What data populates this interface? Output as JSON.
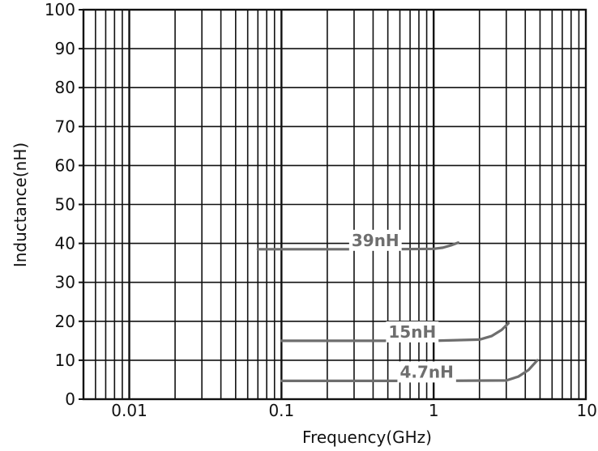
{
  "chart_data": {
    "type": "line",
    "xscale": "log",
    "xlim": [
      0.005,
      10
    ],
    "ylim": [
      0,
      100
    ],
    "grid": true,
    "xlabel": "Frequency(GHz)",
    "ylabel": "Inductance(nH)",
    "xticks": [
      {
        "value": 0.01,
        "label": "0.01"
      },
      {
        "value": 0.1,
        "label": "0.1"
      },
      {
        "value": 1,
        "label": "1"
      },
      {
        "value": 10,
        "label": "10"
      }
    ],
    "yticks": [
      {
        "value": 0,
        "label": "0"
      },
      {
        "value": 10,
        "label": "10"
      },
      {
        "value": 20,
        "label": "20"
      },
      {
        "value": 30,
        "label": "30"
      },
      {
        "value": 40,
        "label": "40"
      },
      {
        "value": 50,
        "label": "50"
      },
      {
        "value": 60,
        "label": "60"
      },
      {
        "value": 70,
        "label": "70"
      },
      {
        "value": 80,
        "label": "80"
      },
      {
        "value": 90,
        "label": "90"
      },
      {
        "value": 100,
        "label": "100"
      }
    ],
    "series": [
      {
        "name": "39nH",
        "color": "#6e6e6e",
        "x": [
          0.07,
          0.5,
          1.0,
          1.15,
          1.3,
          1.45
        ],
        "y": [
          38.5,
          38.5,
          38.6,
          38.9,
          39.5,
          40.2
        ]
      },
      {
        "name": "15nH",
        "color": "#6e6e6e",
        "x": [
          0.1,
          1.0,
          2.0,
          2.4,
          2.8,
          3.1
        ],
        "y": [
          15.0,
          15.0,
          15.3,
          16.2,
          17.8,
          19.5
        ]
      },
      {
        "name": "4.7nH",
        "color": "#6e6e6e",
        "x": [
          0.1,
          1.0,
          3.0,
          3.6,
          4.2,
          4.8
        ],
        "y": [
          4.7,
          4.7,
          4.8,
          5.8,
          7.5,
          10.0
        ]
      }
    ]
  }
}
